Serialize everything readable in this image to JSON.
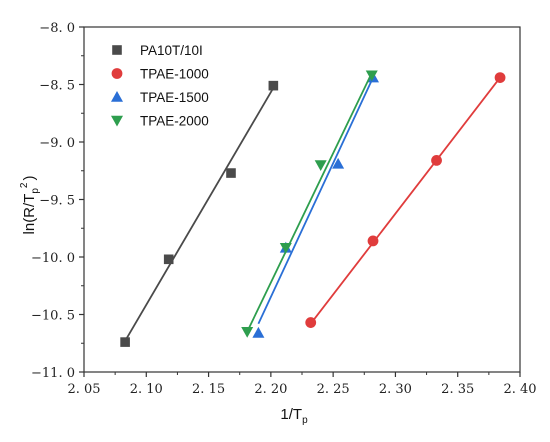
{
  "chart_data": {
    "type": "scatter",
    "x_axis": {
      "range": [
        2.05,
        2.4
      ],
      "ticks": [
        2.05,
        2.1,
        2.15,
        2.2,
        2.25,
        2.3,
        2.35,
        2.4
      ],
      "tick_labels": [
        "2. 05",
        "2. 10",
        "2. 15",
        "2. 20",
        "2. 25",
        "2. 30",
        "2. 35",
        "2. 40"
      ],
      "label_main": "1/T",
      "label_sub": "p"
    },
    "y_axis": {
      "range": [
        -11.0,
        -8.0
      ],
      "ticks": [
        -11.0,
        -10.5,
        -10.0,
        -9.5,
        -9.0,
        -8.5,
        -8.0
      ],
      "tick_labels": [
        "−11. 0",
        "−10. 5",
        "−10. 0",
        "−9. 5",
        "−9. 0",
        "−8. 5",
        "−8. 0"
      ],
      "label_prefix": "ln(R/T",
      "label_sub": "p",
      "label_sup": "2",
      "label_suffix": ")"
    },
    "legend_position": "top-left",
    "grid": false,
    "series": [
      {
        "name": "PA10T/10I",
        "color": "#4a4a4a",
        "marker": "square",
        "points": [
          [
            2.083,
            -10.74
          ],
          [
            2.118,
            -10.02
          ],
          [
            2.168,
            -9.27
          ],
          [
            2.202,
            -8.51
          ]
        ],
        "fit": [
          [
            2.083,
            -10.73
          ],
          [
            2.202,
            -8.53
          ]
        ]
      },
      {
        "name": "TPAE-1000",
        "color": "#e03c3c",
        "marker": "circle",
        "points": [
          [
            2.232,
            -10.57
          ],
          [
            2.282,
            -9.86
          ],
          [
            2.333,
            -9.16
          ],
          [
            2.384,
            -8.44
          ]
        ],
        "fit": [
          [
            2.232,
            -10.58
          ],
          [
            2.384,
            -8.44
          ]
        ]
      },
      {
        "name": "TPAE-1500",
        "color": "#2a6fd6",
        "marker": "triangle-up",
        "points": [
          [
            2.19,
            -10.66
          ],
          [
            2.212,
            -9.92
          ],
          [
            2.254,
            -9.19
          ],
          [
            2.282,
            -8.44
          ]
        ],
        "fit": [
          [
            2.19,
            -10.58
          ],
          [
            2.282,
            -8.44
          ]
        ]
      },
      {
        "name": "TPAE-2000",
        "color": "#2e9e4e",
        "marker": "triangle-down",
        "points": [
          [
            2.181,
            -10.65
          ],
          [
            2.212,
            -9.92
          ],
          [
            2.24,
            -9.2
          ],
          [
            2.281,
            -8.42
          ]
        ],
        "fit": [
          [
            2.181,
            -10.65
          ],
          [
            2.281,
            -8.4
          ]
        ]
      }
    ]
  }
}
